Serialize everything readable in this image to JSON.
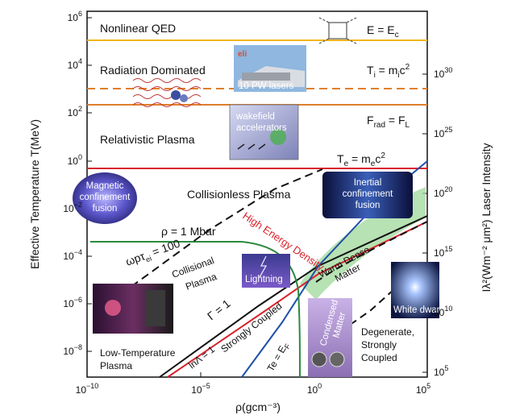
{
  "axes": {
    "x_label": "ρ(gcm⁻³)",
    "y_left_label": "Effective Temperature T(MeV)",
    "y_right_label": "Iλ²(Wm⁻² μm²) Laser Intensity",
    "x_ticks": [
      {
        "base": "10",
        "exp": "−10"
      },
      {
        "base": "10",
        "exp": "−5"
      },
      {
        "base": "10",
        "exp": "0"
      },
      {
        "base": "10",
        "exp": "5"
      }
    ],
    "y_left_ticks": [
      {
        "base": "10",
        "exp": "6"
      },
      {
        "base": "10",
        "exp": "4"
      },
      {
        "base": "10",
        "exp": "2"
      },
      {
        "base": "10",
        "exp": "0"
      },
      {
        "base": "10",
        "exp": "−2"
      },
      {
        "base": "10",
        "exp": "−4"
      },
      {
        "base": "10",
        "exp": "−6"
      },
      {
        "base": "10",
        "exp": "−8"
      }
    ],
    "y_right_ticks": [
      {
        "base": "10",
        "exp": "30"
      },
      {
        "base": "10",
        "exp": "25"
      },
      {
        "base": "10",
        "exp": "20"
      },
      {
        "base": "10",
        "exp": "15"
      },
      {
        "base": "10",
        "exp": "10"
      },
      {
        "base": "10",
        "exp": "5"
      }
    ]
  },
  "regions": {
    "nonlinear_qed": "Nonlinear QED",
    "radiation_dominated": "Radiation Dominated",
    "relativistic_plasma": "Relativistic Plasma",
    "collisionless_plasma": "Collisionless Plasma",
    "collisional_plasma_1": "Collisional",
    "collisional_plasma_2": "Plasma",
    "low_temperature_1": "Low-Temperature",
    "low_temperature_2": "Plasma",
    "strongly_coupled": "Strongly Coupled",
    "warm_dense_1": "Warm Dense",
    "warm_dense_2": "Matter",
    "degenerate_1": "Degenerate,",
    "degenerate_2": "Strongly",
    "degenerate_3": "Coupled",
    "high_energy_density": "High Energy Density"
  },
  "equations": {
    "e_ec": {
      "a": "E = E",
      "sub": "c",
      "b": ""
    },
    "ti": {
      "a": "T",
      "sub": "i",
      "b": " = m",
      "sub2": "i",
      "c": "c",
      "sup": "2"
    },
    "frad": {
      "a": "F",
      "sub": "rad",
      "b": " = F",
      "sub2": "L"
    },
    "te": {
      "a": "T",
      "sub": "e",
      "b": " = m",
      "sub2": "e",
      "c": "c",
      "sup": "2"
    },
    "rho": "ρ = 1 Mbar",
    "omega": {
      "a": "ωpτ",
      "sub": "ei",
      "b": " = 100"
    },
    "gamma": "Γ = 1",
    "lnlambda": "lnΛ = 1",
    "te_ef": {
      "a": "Te = E",
      "sub": "F"
    }
  },
  "image_labels": {
    "pw_lasers": "10 PW lasers",
    "eli_logo": "eli",
    "wakefield_1": "wakefield",
    "wakefield_2": "accelerators",
    "magnetic_1": "Magnetic",
    "magnetic_2": "confinement",
    "magnetic_3": "fusion",
    "inertial_1": "Inertial",
    "inertial_2": "confinement",
    "inertial_3": "fusion",
    "lightning": "Lightning",
    "condensed_1": "Condensed",
    "condensed_2": "Matter",
    "white_dwarf": "White dwarf"
  },
  "colors": {
    "qed_line": "#f2b61c",
    "radiation_line": "#e07f2c",
    "te_line": "#d9232d",
    "green_line": "#2b8a3e",
    "blue_line": "#1f4fa8",
    "hed_label": "#d9232d",
    "hed_band": "#9fd89a"
  }
}
